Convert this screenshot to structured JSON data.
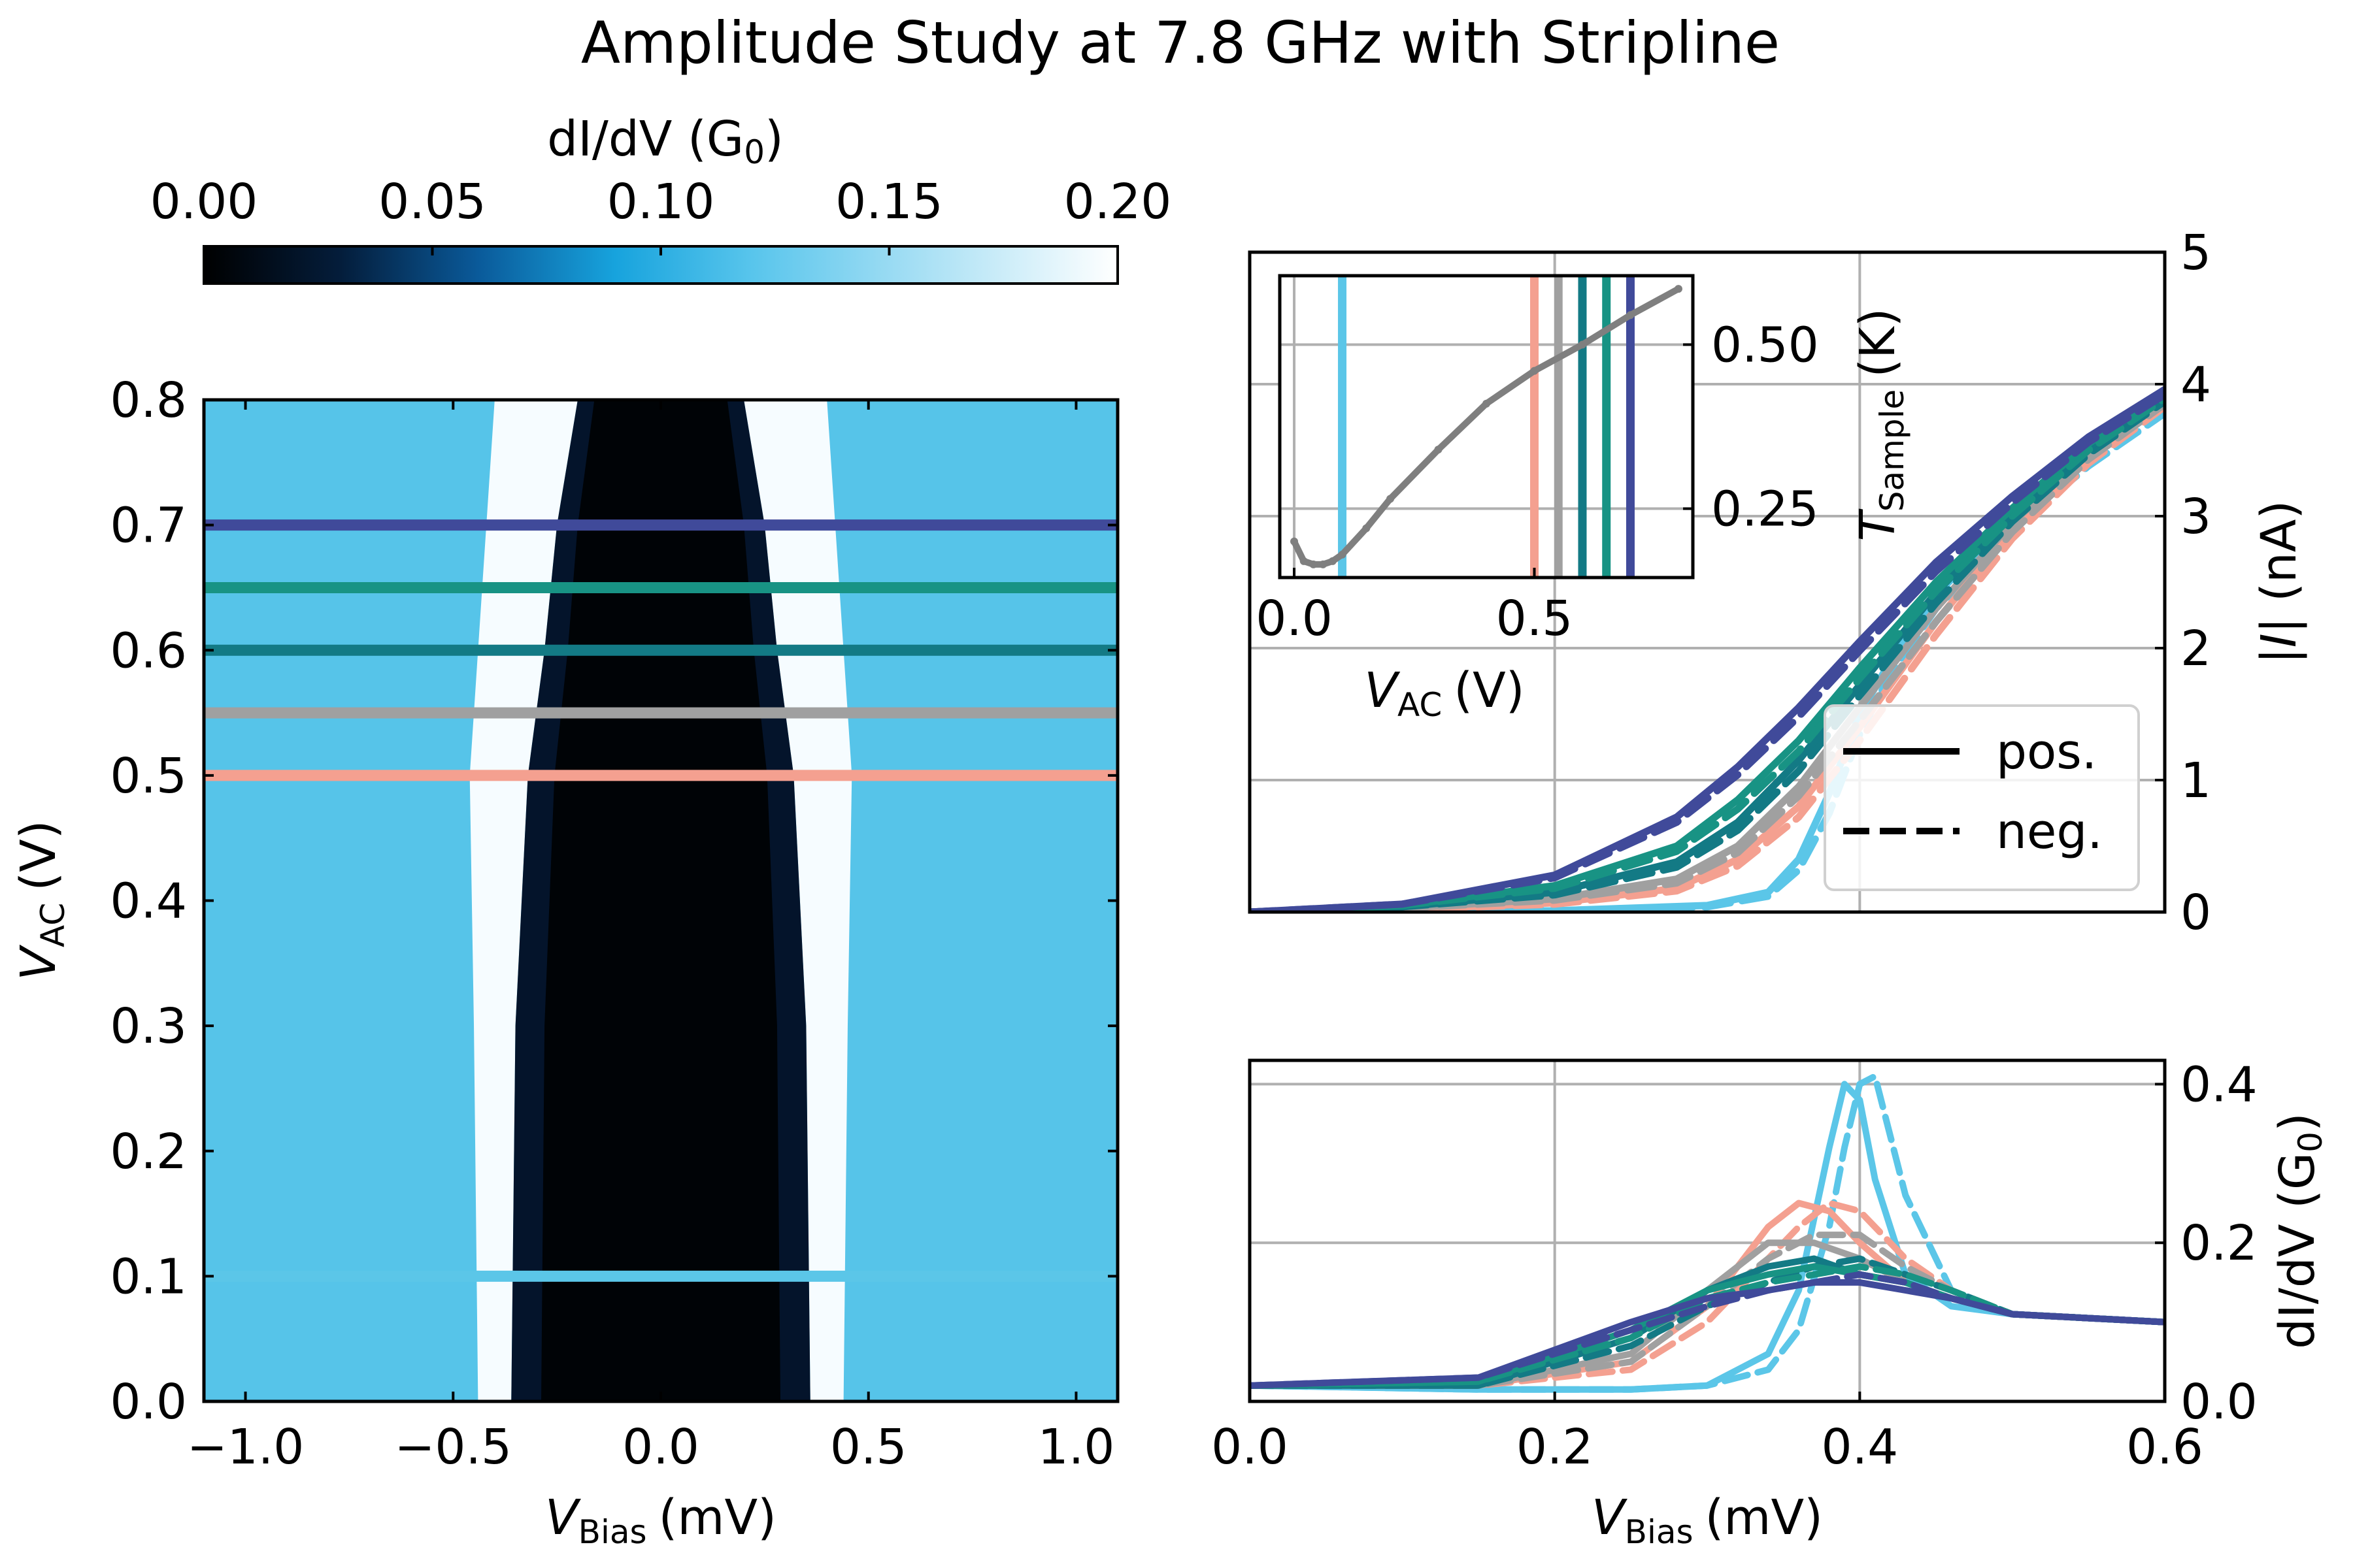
{
  "figure": {
    "title": "Amplitude Study at 7.8 GHz with Stripline"
  },
  "colors": {
    "v010": "#5bc6e8",
    "v050": "#f4a090",
    "v055": "#a0a0a0",
    "v060": "#137a85",
    "v065": "#189384",
    "v070": "#404a9a",
    "temperature": "#7f7f7f"
  },
  "chart_data": [
    {
      "id": "map",
      "type": "heatmap",
      "title": "",
      "xlabel": "V",
      "xlabel_sub": "Bias",
      "xlabel_unit": "(mV)",
      "ylabel": "V",
      "ylabel_sub": "AC",
      "ylabel_unit": "(V)",
      "xlim": [
        -1.1,
        1.1
      ],
      "ylim": [
        0.0,
        0.8
      ],
      "xticks": [
        -1.0,
        -0.5,
        0.0,
        0.5,
        1.0
      ],
      "xtick_labels": [
        "−1.0",
        "−0.5",
        "0.0",
        "0.5",
        "1.0"
      ],
      "yticks": [
        0.0,
        0.1,
        0.2,
        0.3,
        0.4,
        0.5,
        0.6,
        0.7,
        0.8
      ],
      "ytick_labels": [
        "0.0",
        "0.1",
        "0.2",
        "0.3",
        "0.4",
        "0.5",
        "0.6",
        "0.7",
        "0.8"
      ],
      "colorbar": {
        "label": "dI/dV",
        "label_unit": "(G",
        "label_unit_sub": "0",
        "label_unit_end": ")",
        "range": [
          0.0,
          0.2
        ],
        "ticks": [
          0.0,
          0.05,
          0.1,
          0.15,
          0.2
        ],
        "tick_labels": [
          "0.00",
          "0.05",
          "0.10",
          "0.15",
          "0.20"
        ]
      },
      "gap_edge_mV": [
        {
          "v_ac": 0.0,
          "inner": 0.36,
          "outer": 0.44
        },
        {
          "v_ac": 0.3,
          "inner": 0.35,
          "outer": 0.45
        },
        {
          "v_ac": 0.5,
          "inner": 0.32,
          "outer": 0.46
        },
        {
          "v_ac": 0.6,
          "inner": 0.28,
          "outer": 0.44
        },
        {
          "v_ac": 0.7,
          "inner": 0.25,
          "outer": 0.42
        },
        {
          "v_ac": 0.8,
          "inner": 0.2,
          "outer": 0.4
        }
      ],
      "cut_lines_V": [
        0.1,
        0.5,
        0.55,
        0.6,
        0.65,
        0.7
      ]
    },
    {
      "id": "current",
      "type": "line",
      "xlabel": "",
      "ylabel": "|I|",
      "ylabel_unit": "(nA)",
      "xlim": [
        0.0,
        0.6
      ],
      "ylim": [
        0,
        5
      ],
      "yticks": [
        0,
        1,
        2,
        3,
        4,
        5
      ],
      "ytick_labels": [
        "0",
        "1",
        "2",
        "3",
        "4",
        "5"
      ],
      "legend": {
        "position": "lower-right",
        "entries": [
          {
            "label": "pos.",
            "style": "solid"
          },
          {
            "label": "neg.",
            "style": "dashed"
          }
        ]
      },
      "series": [
        {
          "v_ac": 0.1,
          "x": [
            0.0,
            0.2,
            0.3,
            0.34,
            0.36,
            0.38,
            0.4,
            0.42,
            0.45,
            0.5,
            0.55,
            0.6
          ],
          "pos": [
            0.0,
            0.01,
            0.05,
            0.15,
            0.4,
            0.9,
            1.5,
            1.9,
            2.4,
            3.0,
            3.45,
            3.85
          ],
          "neg": [
            0.0,
            0.01,
            0.04,
            0.12,
            0.32,
            0.75,
            1.35,
            1.8,
            2.3,
            2.9,
            3.38,
            3.78
          ]
        },
        {
          "v_ac": 0.5,
          "x": [
            0.0,
            0.1,
            0.2,
            0.28,
            0.32,
            0.36,
            0.4,
            0.45,
            0.5,
            0.55,
            0.6
          ],
          "pos": [
            0.0,
            0.02,
            0.07,
            0.18,
            0.4,
            0.8,
            1.4,
            2.2,
            2.9,
            3.45,
            3.87
          ],
          "neg": [
            0.0,
            0.02,
            0.06,
            0.16,
            0.35,
            0.72,
            1.3,
            2.1,
            2.83,
            3.4,
            3.83
          ]
        },
        {
          "v_ac": 0.55,
          "x": [
            0.0,
            0.1,
            0.2,
            0.28,
            0.32,
            0.36,
            0.4,
            0.45,
            0.5,
            0.55,
            0.6
          ],
          "pos": [
            0.0,
            0.03,
            0.1,
            0.25,
            0.5,
            0.95,
            1.55,
            2.3,
            2.95,
            3.48,
            3.89
          ],
          "neg": [
            0.0,
            0.03,
            0.09,
            0.22,
            0.45,
            0.88,
            1.45,
            2.2,
            2.88,
            3.43,
            3.85
          ]
        },
        {
          "v_ac": 0.6,
          "x": [
            0.0,
            0.1,
            0.2,
            0.28,
            0.32,
            0.36,
            0.4,
            0.45,
            0.5,
            0.55,
            0.6
          ],
          "pos": [
            0.0,
            0.04,
            0.15,
            0.38,
            0.68,
            1.15,
            1.72,
            2.42,
            3.02,
            3.52,
            3.91
          ],
          "neg": [
            0.0,
            0.04,
            0.13,
            0.34,
            0.62,
            1.07,
            1.64,
            2.34,
            2.96,
            3.47,
            3.87
          ]
        },
        {
          "v_ac": 0.65,
          "x": [
            0.0,
            0.1,
            0.2,
            0.28,
            0.32,
            0.36,
            0.4,
            0.45,
            0.5,
            0.55,
            0.6
          ],
          "pos": [
            0.0,
            0.05,
            0.2,
            0.5,
            0.85,
            1.3,
            1.85,
            2.5,
            3.06,
            3.55,
            3.93
          ],
          "neg": [
            0.0,
            0.05,
            0.18,
            0.46,
            0.78,
            1.22,
            1.77,
            2.43,
            3.0,
            3.5,
            3.89
          ]
        },
        {
          "v_ac": 0.7,
          "x": [
            0.0,
            0.1,
            0.2,
            0.28,
            0.32,
            0.36,
            0.4,
            0.45,
            0.5,
            0.55,
            0.6
          ],
          "pos": [
            0.0,
            0.06,
            0.28,
            0.72,
            1.1,
            1.55,
            2.05,
            2.65,
            3.15,
            3.6,
            3.96
          ],
          "neg": [
            0.0,
            0.06,
            0.26,
            0.68,
            1.04,
            1.48,
            1.98,
            2.58,
            3.1,
            3.56,
            3.92
          ]
        }
      ]
    },
    {
      "id": "inset",
      "type": "scatter",
      "xlabel": "V",
      "xlabel_sub": "AC",
      "xlabel_unit": "(V)",
      "ylabel": "T",
      "ylabel_sub": "Sample",
      "ylabel_unit": "(K)",
      "xlim": [
        -0.03,
        0.83
      ],
      "ylim": [
        0.145,
        0.605
      ],
      "xticks": [
        0.0,
        0.5
      ],
      "xtick_labels": [
        "0.0",
        "0.5"
      ],
      "yticks": [
        0.25,
        0.5
      ],
      "ytick_labels": [
        "0.25",
        "0.50"
      ],
      "x": [
        0.0,
        0.02,
        0.04,
        0.06,
        0.08,
        0.1,
        0.15,
        0.2,
        0.3,
        0.4,
        0.5,
        0.6,
        0.7,
        0.8
      ],
      "y": [
        0.2,
        0.17,
        0.165,
        0.165,
        0.17,
        0.18,
        0.22,
        0.265,
        0.34,
        0.41,
        0.46,
        0.5,
        0.545,
        0.585
      ],
      "markers_V": [
        0.1,
        0.5,
        0.55,
        0.6,
        0.65,
        0.7
      ]
    },
    {
      "id": "didv",
      "type": "line",
      "xlabel": "V",
      "xlabel_sub": "Bias",
      "xlabel_unit": "(mV)",
      "ylabel": "dI/dV",
      "ylabel_unit": "(G",
      "ylabel_unit_sub": "0",
      "ylabel_unit_end": ")",
      "xlim": [
        0.0,
        0.6
      ],
      "ylim": [
        0.0,
        0.43
      ],
      "xticks": [
        0.0,
        0.2,
        0.4,
        0.6
      ],
      "xtick_labels": [
        "0.0",
        "0.2",
        "0.4",
        "0.6"
      ],
      "yticks": [
        0.0,
        0.2,
        0.4
      ],
      "ytick_labels": [
        "0.0",
        "0.2",
        "0.4"
      ],
      "series": [
        {
          "v_ac": 0.1,
          "x": [
            0.0,
            0.15,
            0.25,
            0.3,
            0.34,
            0.36,
            0.38,
            0.39,
            0.4,
            0.41,
            0.43,
            0.46,
            0.5,
            0.6
          ],
          "pos": [
            0.02,
            0.015,
            0.015,
            0.02,
            0.06,
            0.14,
            0.32,
            0.4,
            0.38,
            0.28,
            0.16,
            0.12,
            0.11,
            0.1
          ],
          "neg": [
            0.02,
            0.015,
            0.015,
            0.02,
            0.04,
            0.09,
            0.22,
            0.32,
            0.4,
            0.41,
            0.26,
            0.14,
            0.11,
            0.1
          ]
        },
        {
          "v_ac": 0.5,
          "x": [
            0.0,
            0.15,
            0.25,
            0.3,
            0.34,
            0.36,
            0.38,
            0.4,
            0.43,
            0.46,
            0.5,
            0.6
          ],
          "pos": [
            0.02,
            0.02,
            0.05,
            0.12,
            0.22,
            0.25,
            0.24,
            0.2,
            0.15,
            0.13,
            0.11,
            0.1
          ],
          "neg": [
            0.02,
            0.02,
            0.04,
            0.1,
            0.18,
            0.22,
            0.25,
            0.24,
            0.18,
            0.14,
            0.11,
            0.1
          ]
        },
        {
          "v_ac": 0.55,
          "x": [
            0.0,
            0.15,
            0.25,
            0.3,
            0.34,
            0.37,
            0.4,
            0.43,
            0.46,
            0.5,
            0.6
          ],
          "pos": [
            0.02,
            0.02,
            0.06,
            0.14,
            0.2,
            0.2,
            0.18,
            0.15,
            0.13,
            0.11,
            0.1
          ],
          "neg": [
            0.02,
            0.02,
            0.05,
            0.12,
            0.18,
            0.21,
            0.21,
            0.17,
            0.14,
            0.11,
            0.1
          ]
        },
        {
          "v_ac": 0.6,
          "x": [
            0.0,
            0.15,
            0.25,
            0.3,
            0.34,
            0.37,
            0.4,
            0.43,
            0.46,
            0.5,
            0.6
          ],
          "pos": [
            0.02,
            0.02,
            0.08,
            0.14,
            0.17,
            0.18,
            0.16,
            0.15,
            0.13,
            0.11,
            0.1
          ],
          "neg": [
            0.02,
            0.02,
            0.07,
            0.12,
            0.15,
            0.17,
            0.18,
            0.16,
            0.14,
            0.11,
            0.1
          ]
        },
        {
          "v_ac": 0.65,
          "x": [
            0.0,
            0.15,
            0.25,
            0.3,
            0.34,
            0.37,
            0.4,
            0.43,
            0.46,
            0.5,
            0.6
          ],
          "pos": [
            0.02,
            0.025,
            0.09,
            0.14,
            0.16,
            0.17,
            0.16,
            0.15,
            0.13,
            0.11,
            0.1
          ],
          "neg": [
            0.02,
            0.025,
            0.08,
            0.13,
            0.15,
            0.16,
            0.17,
            0.16,
            0.14,
            0.11,
            0.1
          ]
        },
        {
          "v_ac": 0.7,
          "x": [
            0.0,
            0.15,
            0.25,
            0.3,
            0.34,
            0.37,
            0.4,
            0.43,
            0.46,
            0.5,
            0.6
          ],
          "pos": [
            0.02,
            0.03,
            0.1,
            0.13,
            0.14,
            0.15,
            0.15,
            0.14,
            0.13,
            0.11,
            0.1
          ],
          "neg": [
            0.02,
            0.03,
            0.09,
            0.12,
            0.14,
            0.15,
            0.16,
            0.15,
            0.13,
            0.11,
            0.1
          ]
        }
      ]
    }
  ]
}
